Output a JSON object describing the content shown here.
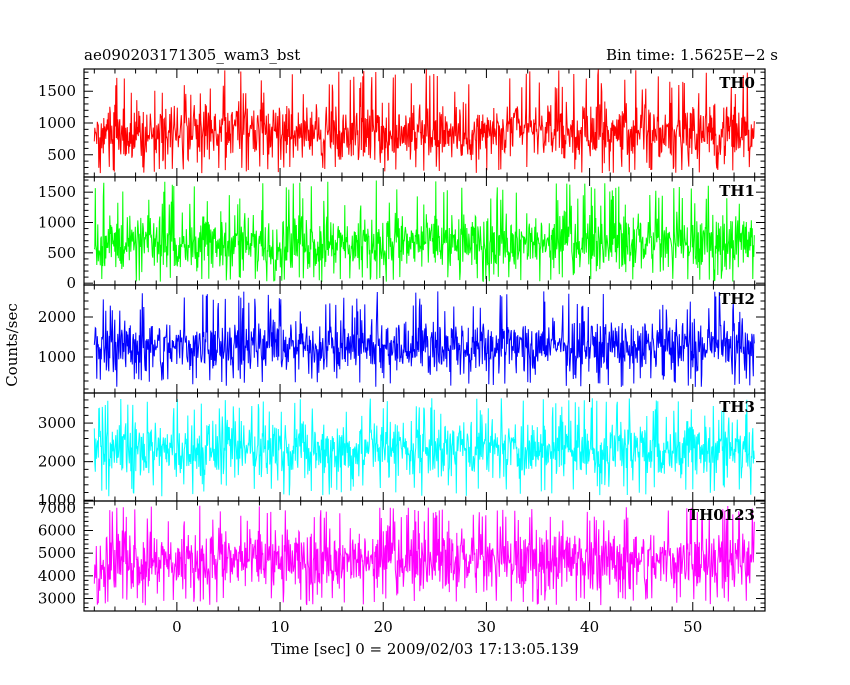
{
  "header": {
    "title": "ae090203171305_wam3_bst",
    "bin_time": "Bin time: 1.5625E−2 s"
  },
  "axes": {
    "ylabel": "Counts/sec",
    "xlabel": "Time [sec] 0 = 2009/02/03 17:13:05.139",
    "x_ticks": [
      "0",
      "10",
      "20",
      "30",
      "40",
      "50"
    ]
  },
  "chart_data": {
    "type": "line",
    "xlim": [
      -9,
      57
    ],
    "data_xrange": [
      -8,
      56
    ],
    "x_tick_values": [
      0,
      10,
      20,
      30,
      40,
      50
    ],
    "panels": [
      {
        "name": "TH0",
        "color": "#ff0000",
        "ylim": [
          150,
          1850
        ],
        "yticks": [
          500,
          1000,
          1500
        ],
        "ytick_labels": [
          "500",
          "1000",
          "1500"
        ],
        "mean": 850,
        "typical_range": [
          330,
          1380
        ],
        "extreme_range": [
          200,
          1850
        ]
      },
      {
        "name": "TH1",
        "color": "#00ff00",
        "ylim": [
          -30,
          1750
        ],
        "yticks": [
          0,
          500,
          1000,
          1500
        ],
        "ytick_labels": [
          "0",
          "500",
          "1000",
          "1500"
        ],
        "mean": 650,
        "typical_range": [
          120,
          1220
        ],
        "extreme_range": [
          20,
          1700
        ]
      },
      {
        "name": "TH2",
        "color": "#0000ff",
        "ylim": [
          100,
          2800
        ],
        "yticks": [
          1000,
          2000
        ],
        "ytick_labels": [
          "1000",
          "2000"
        ],
        "mean": 1200,
        "typical_range": [
          500,
          2050
        ],
        "extreme_range": [
          250,
          2650
        ]
      },
      {
        "name": "TH3",
        "color": "#00ffff",
        "ylim": [
          980,
          3780
        ],
        "yticks": [
          1000,
          2000,
          3000
        ],
        "ytick_labels": [
          "1000",
          "2000",
          "3000"
        ],
        "mean": 2300,
        "typical_range": [
          1450,
          3250
        ],
        "extreme_range": [
          1100,
          3650
        ]
      },
      {
        "name": "TH0123",
        "color": "#ff00ff",
        "ylim": [
          2450,
          7300
        ],
        "yticks": [
          3000,
          4000,
          5000,
          6000,
          7000
        ],
        "ytick_labels": [
          "3000",
          "4000",
          "5000",
          "6000",
          "7000"
        ],
        "mean": 4500,
        "typical_range": [
          3100,
          6300
        ],
        "extreme_range": [
          2700,
          7100
        ]
      }
    ]
  }
}
